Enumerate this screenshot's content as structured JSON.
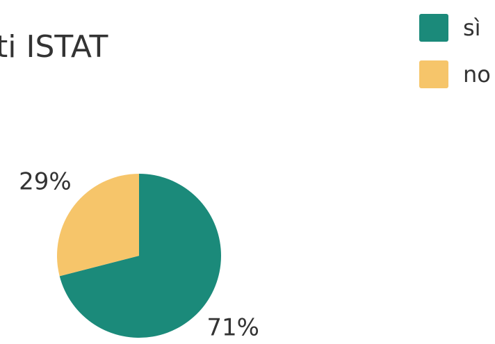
{
  "chart_data": {
    "type": "pie",
    "title": "ti ISTAT",
    "categories": [
      "sì",
      "no"
    ],
    "values": [
      71,
      29
    ],
    "value_labels": [
      "71%",
      "29%"
    ],
    "colors": [
      "#1b8a7a",
      "#f6c56a"
    ],
    "legend": "top-right"
  }
}
